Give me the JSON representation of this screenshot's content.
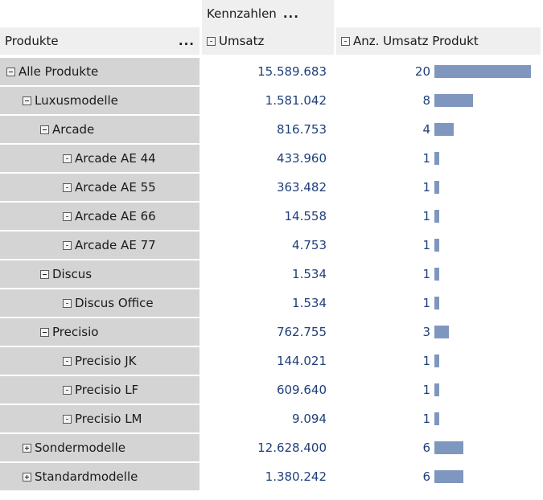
{
  "header": {
    "measures_label": "Kennzahlen",
    "measures_menu": "...",
    "rows_label": "Produkte",
    "rows_menu": "...",
    "col1_label": "Umsatz",
    "col2_label": "Anz. Umsatz Produkt"
  },
  "rows": [
    {
      "label": "Alle Produkte",
      "level": 0,
      "expander": "minus",
      "umsatz": "15.589.683",
      "anzahl": "20",
      "count": 20
    },
    {
      "label": "Luxusmodelle",
      "level": 1,
      "expander": "minus",
      "umsatz": "1.581.042",
      "anzahl": "8",
      "count": 8
    },
    {
      "label": "Arcade",
      "level": 2,
      "expander": "minus",
      "umsatz": "816.753",
      "anzahl": "4",
      "count": 4
    },
    {
      "label": "Arcade AE 44",
      "level": 3,
      "expander": "dot",
      "umsatz": "433.960",
      "anzahl": "1",
      "count": 1
    },
    {
      "label": "Arcade AE 55",
      "level": 3,
      "expander": "dot",
      "umsatz": "363.482",
      "anzahl": "1",
      "count": 1
    },
    {
      "label": "Arcade AE 66",
      "level": 3,
      "expander": "dot",
      "umsatz": "14.558",
      "anzahl": "1",
      "count": 1
    },
    {
      "label": "Arcade AE 77",
      "level": 3,
      "expander": "dot",
      "umsatz": "4.753",
      "anzahl": "1",
      "count": 1
    },
    {
      "label": "Discus",
      "level": 2,
      "expander": "minus",
      "umsatz": "1.534",
      "anzahl": "1",
      "count": 1
    },
    {
      "label": "Discus Office",
      "level": 3,
      "expander": "dot",
      "umsatz": "1.534",
      "anzahl": "1",
      "count": 1
    },
    {
      "label": "Precisio",
      "level": 2,
      "expander": "minus",
      "umsatz": "762.755",
      "anzahl": "3",
      "count": 3
    },
    {
      "label": "Precisio JK",
      "level": 3,
      "expander": "dot",
      "umsatz": "144.021",
      "anzahl": "1",
      "count": 1
    },
    {
      "label": "Precisio LF",
      "level": 3,
      "expander": "dot",
      "umsatz": "609.640",
      "anzahl": "1",
      "count": 1
    },
    {
      "label": "Precisio LM",
      "level": 3,
      "expander": "dot",
      "umsatz": "9.094",
      "anzahl": "1",
      "count": 1
    },
    {
      "label": "Sondermodelle",
      "level": 1,
      "expander": "plus",
      "umsatz": "12.628.400",
      "anzahl": "6",
      "count": 6
    },
    {
      "label": "Standardmodelle",
      "level": 1,
      "expander": "plus",
      "umsatz": "1.380.242",
      "anzahl": "6",
      "count": 6
    }
  ],
  "colors": {
    "bar": "#7f97be",
    "header_bg": "#efefef",
    "rowhead_bg": "#d4d4d4",
    "value_text": "#1f3f7a"
  }
}
